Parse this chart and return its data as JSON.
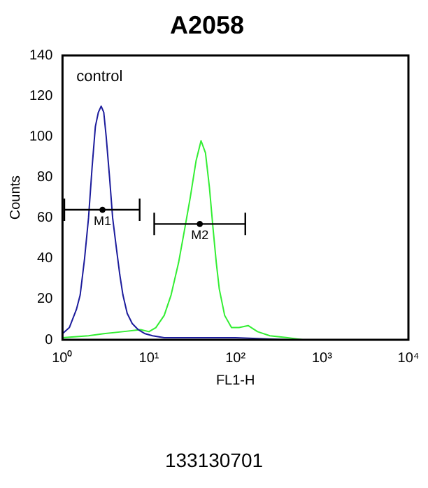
{
  "chart_data": {
    "type": "line",
    "title": "A2058",
    "xlabel": "FL1-H",
    "ylabel": "Counts",
    "log": "x",
    "xlim": [
      1,
      10000
    ],
    "ylim": [
      0,
      140
    ],
    "xticks": [
      {
        "value": 1,
        "label": "10⁰"
      },
      {
        "value": 10,
        "label": "10¹"
      },
      {
        "value": 100,
        "label": "10²"
      },
      {
        "value": 1000,
        "label": "10³"
      },
      {
        "value": 10000,
        "label": "10⁴"
      }
    ],
    "yticks": [
      0,
      20,
      40,
      60,
      80,
      100,
      120,
      140
    ],
    "grid": false,
    "legend": false,
    "marker": "none",
    "line_style": "solid",
    "annotations": [
      "control",
      "133130701"
    ],
    "series": [
      {
        "color": "#1c1c9c",
        "x": [
          1,
          1.2,
          1.45,
          1.6,
          1.8,
          2.0,
          2.2,
          2.4,
          2.6,
          2.8,
          3.0,
          3.2,
          3.5,
          3.8,
          4.2,
          4.6,
          5,
          5.6,
          6.4,
          7.5,
          9,
          11,
          15,
          30,
          100,
          400
        ],
        "values": [
          3,
          6,
          15,
          22,
          40,
          60,
          85,
          105,
          112,
          115,
          112,
          100,
          80,
          60,
          45,
          32,
          22,
          13,
          8,
          5,
          3,
          2,
          1,
          1,
          1,
          0
        ]
      },
      {
        "color": "#33ee33",
        "x": [
          1,
          2,
          3,
          5,
          8,
          10,
          12,
          15,
          18,
          22,
          26,
          30,
          35,
          40,
          45,
          50,
          55,
          60,
          65,
          75,
          90,
          110,
          140,
          180,
          250,
          400,
          600
        ],
        "values": [
          1,
          2,
          3,
          4,
          5,
          4,
          6,
          12,
          22,
          38,
          55,
          70,
          88,
          98,
          92,
          75,
          55,
          38,
          25,
          12,
          6,
          6,
          7,
          4,
          2,
          1,
          0
        ]
      },
      {
        "name": "M1",
        "type": "scatter",
        "marker": "circle",
        "color": "#000000",
        "x": [
          2.9
        ],
        "values": [
          64
        ],
        "xerrors": [
          [
            1.05,
            7.8
          ]
        ]
      },
      {
        "name": "M2",
        "type": "scatter",
        "marker": "circle",
        "color": "#000000",
        "x": [
          38.7
        ],
        "values": [
          57
        ],
        "xerrors": [
          [
            11.5,
            130
          ]
        ]
      }
    ]
  }
}
